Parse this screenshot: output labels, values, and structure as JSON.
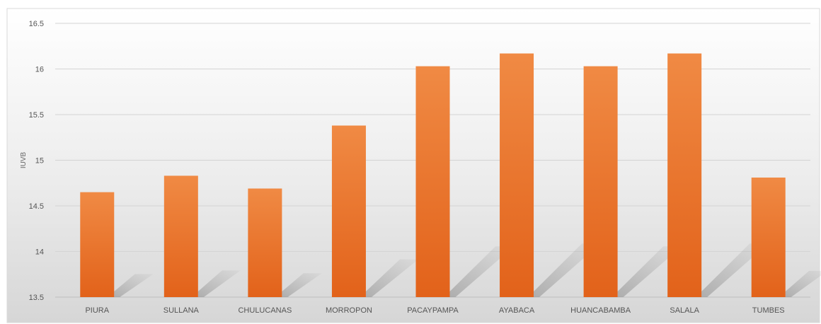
{
  "chart_data": {
    "type": "bar",
    "title": "",
    "xlabel": "",
    "ylabel": "IUVB",
    "ylim": [
      13.5,
      16.5
    ],
    "yticks": [
      13.5,
      14,
      14.5,
      15,
      15.5,
      16,
      16.5
    ],
    "ytick_labels": [
      "13.5",
      "14",
      "14.5",
      "15",
      "15.5",
      "16",
      "16.5"
    ],
    "grid": true,
    "legend": "none",
    "bar_color": "#ec7328",
    "categories": [
      "PIURA",
      "SULLANA",
      "CHULUCANAS",
      "MORROPON",
      "PACAYPAMPA",
      "AYABACA",
      "HUANCABAMBA",
      "SALALA",
      "TUMBES"
    ],
    "values": [
      14.65,
      14.83,
      14.69,
      15.38,
      16.03,
      16.17,
      16.03,
      16.17,
      14.81
    ]
  }
}
